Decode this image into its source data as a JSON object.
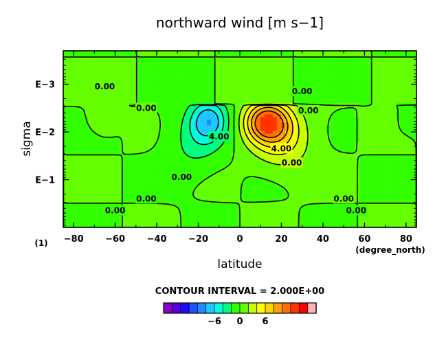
{
  "chart_data": {
    "type": "heatmap",
    "title": "northward wind [m s−1]",
    "xlabel": "latitude",
    "ylabel": "sigma",
    "x_units": "(degree_north)",
    "x_ticks": [
      "−80",
      "−60",
      "−40",
      "−20",
      "0",
      "20",
      "40",
      "60",
      "80"
    ],
    "x_tick_values": [
      -80,
      -60,
      -40,
      -20,
      0,
      20,
      40,
      60,
      80
    ],
    "xlim": [
      -85,
      85
    ],
    "y_ticks": [
      "E−3",
      "E−2",
      "E−1"
    ],
    "y_tick_values": [
      -3,
      -2,
      -1
    ],
    "ylim_log10": [
      -3.7,
      0
    ],
    "y_scale": "log",
    "corner_label": "(1)",
    "contour_interval_label": "CONTOUR INTERVAL = 2.000E+00",
    "contour_interval": 2.0,
    "colorbar": {
      "ticks": [
        "−6",
        "0",
        "6"
      ],
      "tick_values": [
        -6,
        0,
        6
      ],
      "levels": [
        -12,
        -10,
        -8,
        -6,
        -4,
        -2,
        0,
        2,
        4,
        6,
        8,
        10,
        12
      ],
      "colors": [
        "#8a00c8",
        "#5a00dc",
        "#1e0aff",
        "#1e50ff",
        "#1e8cff",
        "#1ec8ff",
        "#00ffe0",
        "#00ff80",
        "#32ff00",
        "#64ff00",
        "#c8ff00",
        "#ffff00",
        "#ffd200",
        "#ffa000",
        "#ff6e00",
        "#ff3200",
        "#ff0000",
        "#ffb4b4"
      ]
    },
    "contour_labels": [
      {
        "text": "0.00",
        "lat": -65,
        "lsig": -2.95
      },
      {
        "text": "0.00",
        "lat": -45,
        "lsig": -2.5
      },
      {
        "text": "4.00",
        "lat": -10,
        "lsig": -1.9
      },
      {
        "text": "0.00",
        "lat": -28,
        "lsig": -1.05
      },
      {
        "text": "0.00",
        "lat": -45,
        "lsig": -0.6
      },
      {
        "text": "0.00",
        "lat": -60,
        "lsig": -0.35
      },
      {
        "text": "0.00",
        "lat": 30,
        "lsig": -2.85
      },
      {
        "text": "0.00",
        "lat": 33,
        "lsig": -2.45
      },
      {
        "text": "4.00",
        "lat": 20,
        "lsig": -1.65
      },
      {
        "text": "0.00",
        "lat": 25,
        "lsig": -1.35
      },
      {
        "text": "0.00",
        "lat": 50,
        "lsig": -0.6
      },
      {
        "text": "0.00",
        "lat": 56,
        "lsig": -0.35
      }
    ],
    "features": [
      {
        "name": "southern negative core",
        "lat": -15,
        "lsig": -2.3,
        "value": -7
      },
      {
        "name": "northern positive core",
        "lat": 13,
        "lsig": -2.25,
        "value": 11
      },
      {
        "name": "tropopause shear layer",
        "lsig": -2.55
      }
    ]
  }
}
